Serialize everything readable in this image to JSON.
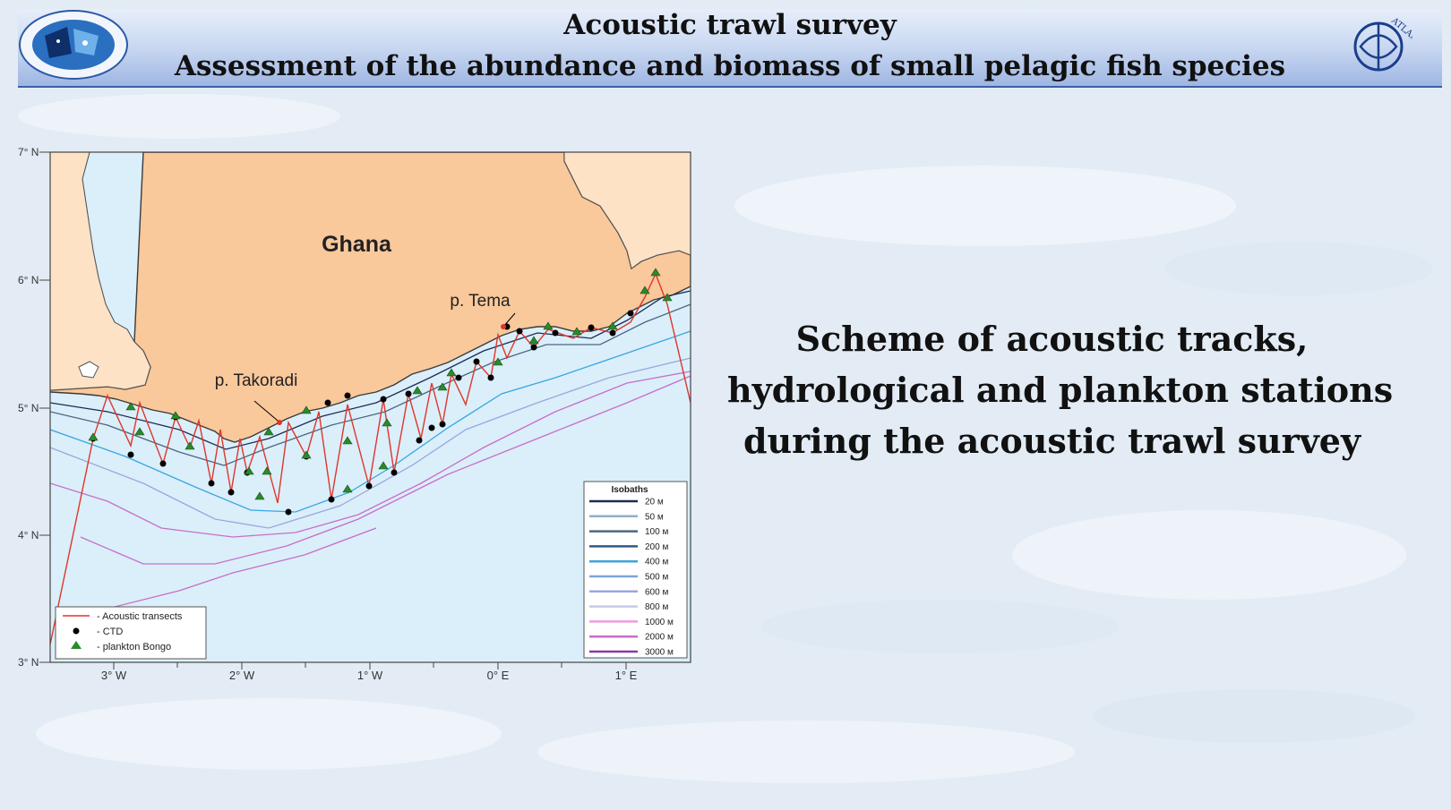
{
  "header": {
    "title": "Acoustic trawl survey",
    "subtitle": "Assessment of the abundance and biomass of small pelagic fish species",
    "logo_right_text": "ATLANTNIRO"
  },
  "map": {
    "country_label": "Ghana",
    "port_tema": "p. Tema",
    "port_takoradi": "p. Takoradi",
    "lat_labels": [
      "7° N",
      "6° N",
      "5° N",
      "4° N",
      "3° N"
    ],
    "lon_labels": [
      "3° W",
      "2° W",
      "1° W",
      "0° E",
      "1° E"
    ],
    "legend_points": {
      "transects": "- Acoustic transects",
      "ctd": "- CTD",
      "bongo": "- plankton Bongo"
    },
    "isobaths": {
      "title": "Isobaths",
      "items": [
        {
          "label": "20 м",
          "color": "#1f2a55"
        },
        {
          "label": "50 м",
          "color": "#8fb0c8"
        },
        {
          "label": "100 м",
          "color": "#4d6780"
        },
        {
          "label": "200 м",
          "color": "#2e5a88"
        },
        {
          "label": "400 м",
          "color": "#3aa5e0"
        },
        {
          "label": "500 м",
          "color": "#7fa4d8"
        },
        {
          "label": "600 м",
          "color": "#9aa6de"
        },
        {
          "label": "800 м",
          "color": "#c7cbe8"
        },
        {
          "label": "1000 м",
          "color": "#ee99e0"
        },
        {
          "label": "2000 м",
          "color": "#c86ec8"
        },
        {
          "label": "3000 м",
          "color": "#8a3aa8"
        }
      ]
    },
    "colors": {
      "land": "#f9c89b",
      "land_light": "#fde2c6",
      "sea": "#d9eff9",
      "transect": "#e0352b",
      "ctd": "#000000",
      "bongo": "#2a8a2a"
    }
  },
  "caption": {
    "line1": "Scheme of acoustic tracks,",
    "line2": "hydrological and plankton stations",
    "line3": "during the acoustic trawl survey"
  }
}
